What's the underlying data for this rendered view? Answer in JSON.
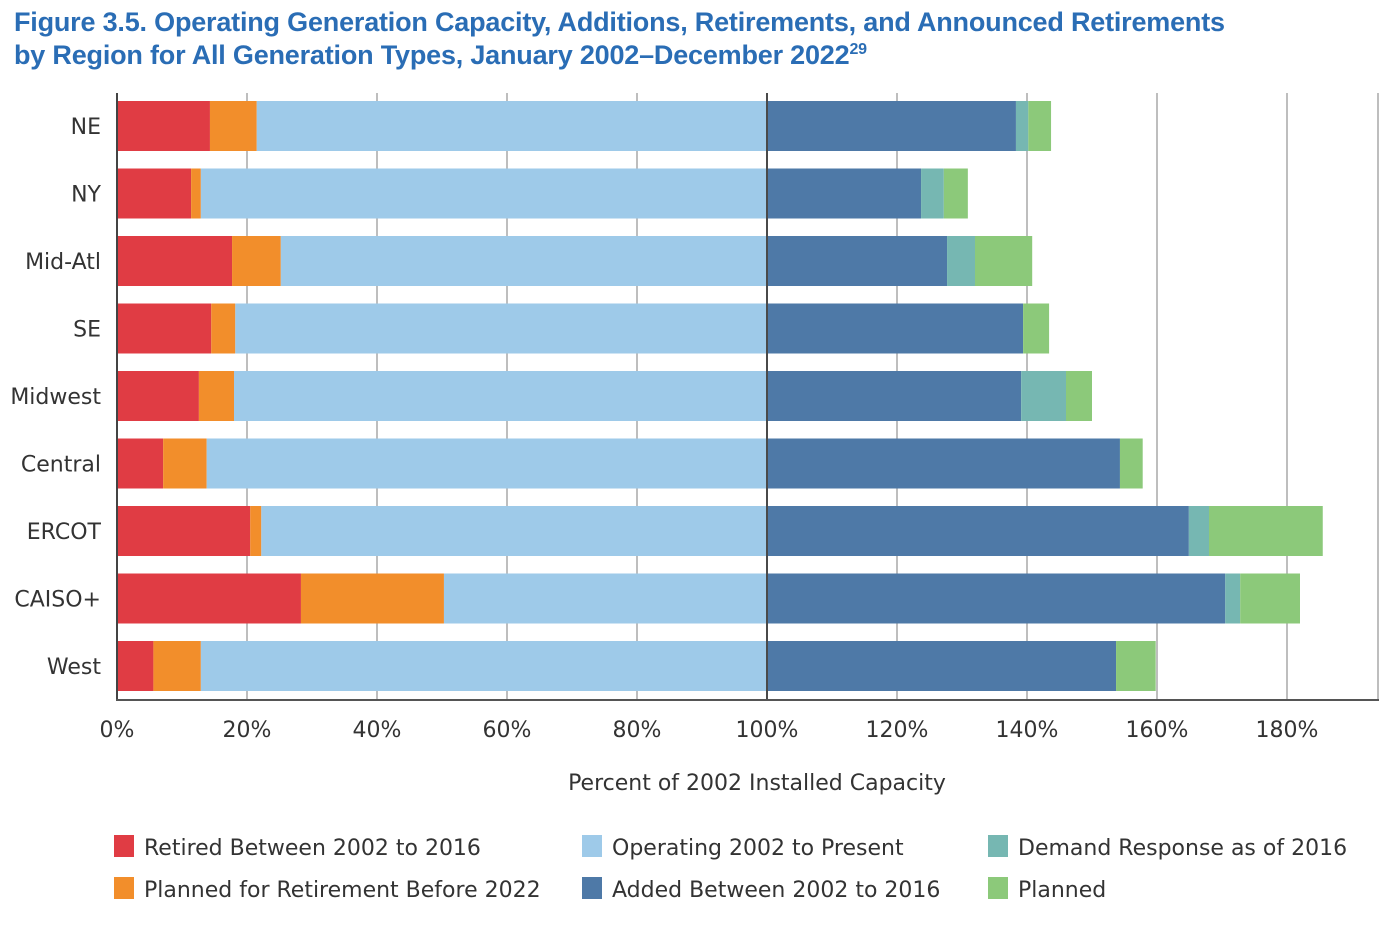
{
  "header": {
    "title_line1": "Figure 3.5. Operating Generation Capacity, Additions, Retirements, and Announced Retirements",
    "title_line2": "by Region for All Generation Types, January 2002–December 2022",
    "title_footnote": "29"
  },
  "chart_data": {
    "type": "bar",
    "orientation": "horizontal",
    "stacked": true,
    "title": "Figure 3.5. Operating Generation Capacity, Additions, Retirements, and Announced Retirements by Region for All Generation Types, January 2002–December 2022",
    "xlabel": "Percent of 2002 Installed Capacity",
    "ylabel": "",
    "xlim": [
      0,
      194
    ],
    "xticks": [
      0,
      20,
      40,
      60,
      80,
      100,
      120,
      140,
      160,
      180
    ],
    "xtick_labels": [
      "0%",
      "20%",
      "40%",
      "60%",
      "80%",
      "100%",
      "120%",
      "140%",
      "160%",
      "180%"
    ],
    "grid": "vertical",
    "reference_line": 100,
    "legend_position": "bottom",
    "categories": [
      "NE",
      "NY",
      "Mid-Atl",
      "SE",
      "Midwest",
      "Central",
      "ERCOT",
      "CAISO+",
      "West"
    ],
    "series": [
      {
        "name": "Retired Between 2002 to 2016",
        "color": "#e03c44",
        "values": [
          14.3,
          11.4,
          17.7,
          14.5,
          12.6,
          7.1,
          20.5,
          28.3,
          5.6
        ]
      },
      {
        "name": "Planned for Retirement Before 2022",
        "color": "#f28e2b",
        "values": [
          7.2,
          1.5,
          7.5,
          3.7,
          5.4,
          6.7,
          1.7,
          22.0,
          7.3
        ]
      },
      {
        "name": "Operating 2002 to Present",
        "color": "#9ecae9",
        "values": [
          78.5,
          87.1,
          74.8,
          81.8,
          82.0,
          86.2,
          77.8,
          49.7,
          87.1
        ]
      },
      {
        "name": "Added Between 2002 to 2016",
        "color": "#4e79a7",
        "values": [
          38.3,
          23.7,
          27.7,
          39.4,
          39.1,
          54.3,
          64.9,
          70.5,
          53.7
        ]
      },
      {
        "name": "Demand Response as of 2016",
        "color": "#76b7b2",
        "values": [
          1.9,
          3.5,
          4.3,
          0,
          6.9,
          0,
          3.1,
          2.3,
          0
        ]
      },
      {
        "name": "Planned",
        "color": "#8cc97a",
        "values": [
          3.5,
          3.7,
          8.8,
          4.0,
          4.0,
          3.5,
          17.5,
          9.2,
          6.1
        ]
      }
    ],
    "legend_order": [
      0,
      2,
      4,
      1,
      3,
      5
    ]
  }
}
